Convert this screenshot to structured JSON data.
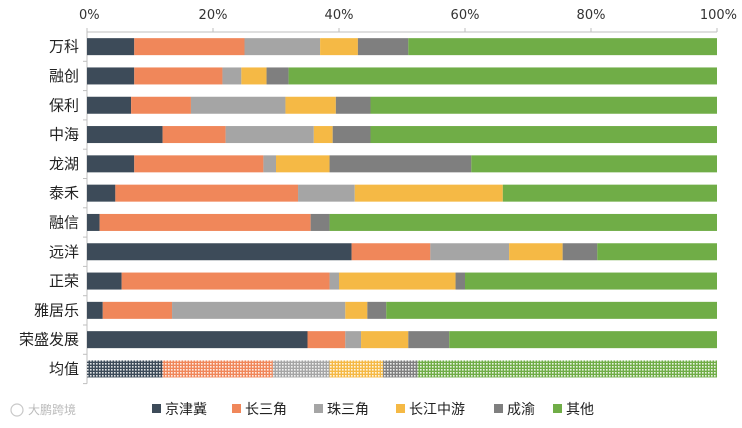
{
  "chart_data": {
    "type": "bar",
    "orientation": "horizontal",
    "stacked": true,
    "x_tick_labels": [
      "0%",
      "20%",
      "40%",
      "60%",
      "80%",
      "100%"
    ],
    "xlim": [
      0,
      100
    ],
    "categories": [
      "万科",
      "融创",
      "保利",
      "中海",
      "龙湖",
      "泰禾",
      "融信",
      "远洋",
      "正荣",
      "雅居乐",
      "荣盛发展",
      "均值"
    ],
    "series": [
      {
        "name": "京津冀",
        "color": "#3d4b59",
        "values": [
          7.5,
          7.5,
          7,
          12,
          7.5,
          4.5,
          2,
          42,
          5.5,
          2.5,
          35,
          12
        ]
      },
      {
        "name": "长三角",
        "color": "#f0875a",
        "values": [
          17.5,
          14,
          9.5,
          10,
          20.5,
          29,
          33.5,
          12.5,
          33,
          11,
          6,
          17.5
        ]
      },
      {
        "name": "珠三角",
        "color": "#a5a5a5",
        "values": [
          12,
          3,
          15,
          14,
          2,
          9,
          0,
          12.5,
          1.5,
          27.5,
          2.5,
          9
        ]
      },
      {
        "name": "长江中游",
        "color": "#f5b945",
        "values": [
          6,
          4,
          8,
          3,
          8.5,
          23.5,
          0,
          8.5,
          18.5,
          3.5,
          7.5,
          8.5
        ]
      },
      {
        "name": "成渝",
        "color": "#7f7f7f",
        "values": [
          8,
          3.5,
          5.5,
          6,
          22.5,
          0,
          3,
          5.5,
          1.5,
          3,
          6.5,
          5.5
        ]
      },
      {
        "name": "其他",
        "color": "#70ad47",
        "values": [
          49,
          68,
          55,
          55,
          39,
          34,
          61.5,
          19,
          40,
          52.5,
          42.5,
          47.5
        ]
      }
    ],
    "patterned_categories": [
      "均值"
    ],
    "legend_position": "bottom",
    "grid": false
  },
  "watermark": "大鹏跨境"
}
